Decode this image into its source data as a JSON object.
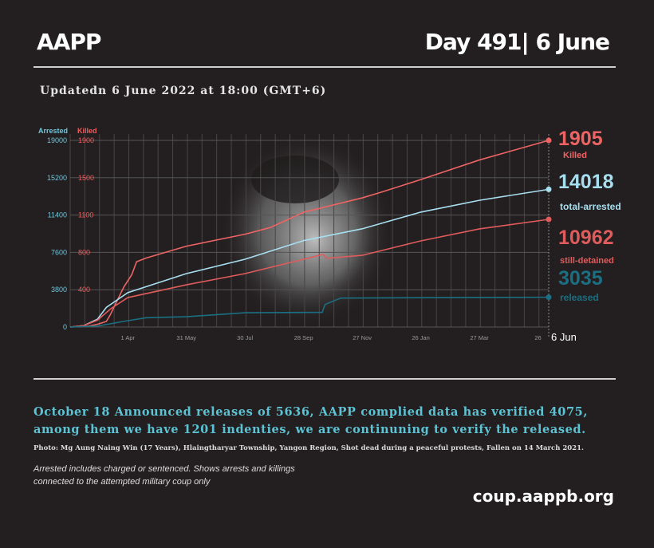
{
  "header": {
    "brand": "AAPP",
    "day": "Day 491| 6 June",
    "updated": "Updatedn 6 June 2022 at 18:00 (GMT+6)"
  },
  "footer": {
    "note": "October 18 Announced releases of 5636, AAPP complied data has verified 4075, among them we have 1201 indenties, we are continuning to verify the released.",
    "photo_credit": "Photo: Mg Aung Naing Win (17 Years), Hlaingtharyar Township, Yangon Region, Shot dead during a peaceful protests, Fallen on  14 March 2021.",
    "footnote_line1": "Arrested includes charged or sentenced. Shows arrests and killings",
    "footnote_line2": "connected to the attempted military coup only",
    "site": "coup.aappb.org"
  },
  "chart_data": {
    "type": "line",
    "xlim": [
      "2021-02-01",
      "2022-06-06"
    ],
    "x_ticks": [
      {
        "date": "2021-04-01",
        "label": "1 Apr"
      },
      {
        "date": "2021-05-31",
        "label": "31 May"
      },
      {
        "date": "2021-07-30",
        "label": "30 Jul"
      },
      {
        "date": "2021-09-28",
        "label": "28 Sep"
      },
      {
        "date": "2021-11-27",
        "label": "27 Nov"
      },
      {
        "date": "2022-01-26",
        "label": "26 Jan"
      },
      {
        "date": "2022-03-27",
        "label": "27 Mar"
      },
      {
        "date": "2022-05-26",
        "label": "26"
      }
    ],
    "end_label": "6 Jun",
    "left_axis": {
      "label": "Arrested",
      "ticks": [
        0,
        3800,
        7600,
        11400,
        15200,
        19000
      ],
      "ylim": [
        0,
        19000
      ],
      "color": "#6ec6dc"
    },
    "right_axis": {
      "label": "Killed",
      "ticks": [
        1900,
        1500,
        1100,
        800,
        400
      ],
      "color": "#ee5e5e"
    },
    "grid": true,
    "series": [
      {
        "name": "Killed",
        "axis": "killed",
        "color": "#ee6464",
        "value_label": "1905",
        "points": [
          [
            "2021-02-01",
            0
          ],
          [
            "2021-02-20",
            10
          ],
          [
            "2021-03-01",
            30
          ],
          [
            "2021-03-10",
            60
          ],
          [
            "2021-03-14",
            130
          ],
          [
            "2021-03-20",
            260
          ],
          [
            "2021-03-28",
            430
          ],
          [
            "2021-04-05",
            560
          ],
          [
            "2021-04-10",
            700
          ],
          [
            "2021-04-20",
            740
          ],
          [
            "2021-05-31",
            850
          ],
          [
            "2021-07-30",
            946
          ],
          [
            "2021-08-25",
            1000
          ],
          [
            "2021-09-28",
            1130
          ],
          [
            "2021-11-27",
            1284
          ],
          [
            "2021-12-15",
            1340
          ],
          [
            "2022-01-26",
            1480
          ],
          [
            "2022-03-27",
            1690
          ],
          [
            "2022-06-06",
            1905
          ]
        ]
      },
      {
        "name": "total-arrested",
        "axis": "arrested",
        "color": "#a8dff0",
        "value_label": "14018",
        "points": [
          [
            "2021-02-01",
            0
          ],
          [
            "2021-02-15",
            150
          ],
          [
            "2021-03-01",
            800
          ],
          [
            "2021-03-10",
            2000
          ],
          [
            "2021-04-01",
            3500
          ],
          [
            "2021-05-31",
            5440
          ],
          [
            "2021-07-30",
            6900
          ],
          [
            "2021-09-28",
            8800
          ],
          [
            "2021-11-27",
            10000
          ],
          [
            "2022-01-26",
            11700
          ],
          [
            "2022-03-27",
            12900
          ],
          [
            "2022-06-06",
            14018
          ]
        ]
      },
      {
        "name": "still-detained",
        "axis": "arrested",
        "color": "#e05b5b",
        "value_label": "10962",
        "points": [
          [
            "2021-02-01",
            0
          ],
          [
            "2021-02-15",
            150
          ],
          [
            "2021-03-01",
            700
          ],
          [
            "2021-03-15",
            1900
          ],
          [
            "2021-04-01",
            3000
          ],
          [
            "2021-05-31",
            4300
          ],
          [
            "2021-07-30",
            5440
          ],
          [
            "2021-09-28",
            6900
          ],
          [
            "2021-10-18",
            7400
          ],
          [
            "2021-10-22",
            7000
          ],
          [
            "2021-11-27",
            7300
          ],
          [
            "2022-01-26",
            8770
          ],
          [
            "2022-03-27",
            9990
          ],
          [
            "2022-06-06",
            10962
          ]
        ]
      },
      {
        "name": "released",
        "axis": "arrested",
        "color": "#1b6f82",
        "value_label": "3035",
        "points": [
          [
            "2021-02-01",
            0
          ],
          [
            "2021-03-01",
            100
          ],
          [
            "2021-04-01",
            650
          ],
          [
            "2021-04-20",
            950
          ],
          [
            "2021-05-31",
            1050
          ],
          [
            "2021-07-30",
            1460
          ],
          [
            "2021-10-17",
            1500
          ],
          [
            "2021-10-20",
            2300
          ],
          [
            "2021-11-05",
            2950
          ],
          [
            "2022-06-06",
            3035
          ]
        ]
      }
    ]
  }
}
